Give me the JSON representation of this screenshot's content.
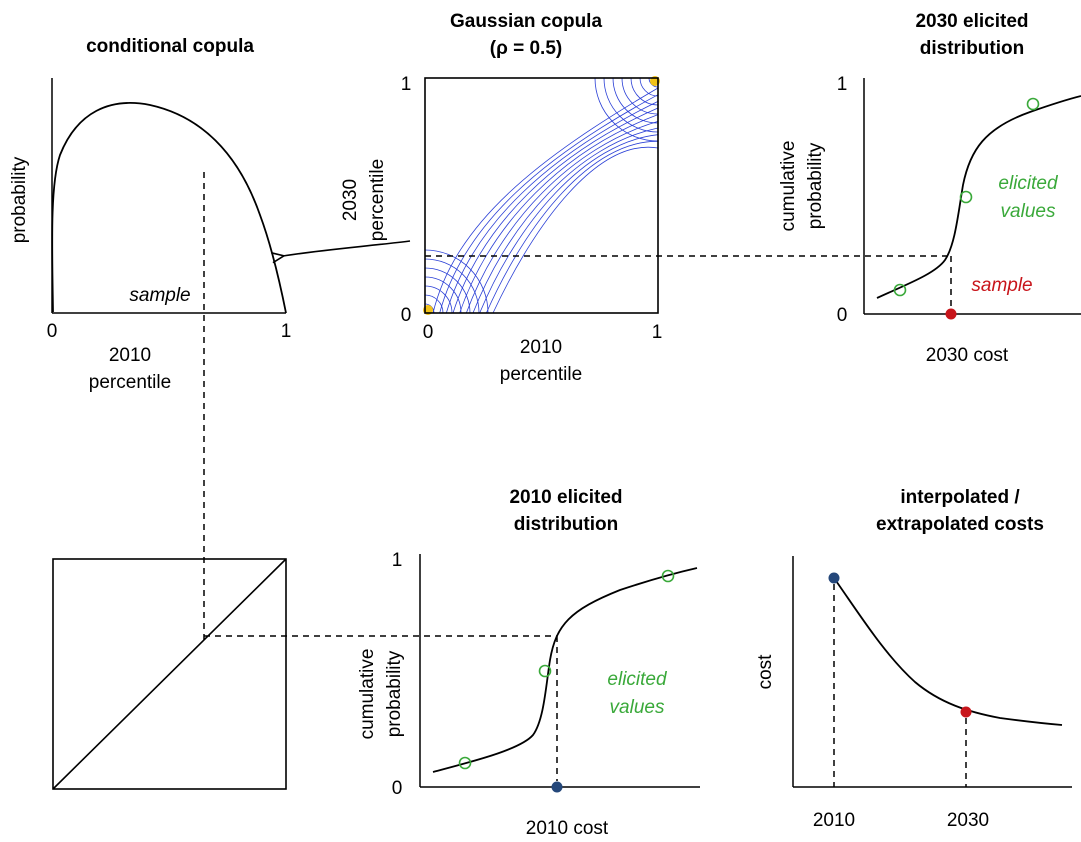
{
  "colors": {
    "elicited": "#3aa93a",
    "sample": "#c8151b",
    "point_2010": "#24477a",
    "contour": "#2a3fd6",
    "line": "#000000"
  },
  "panels": {
    "conditional": {
      "title": "conditional copula",
      "ylabel": "probability",
      "xlabel_line1": "2010",
      "xlabel_line2": "percentile",
      "x_tick_min": "0",
      "x_tick_max": "1",
      "sample_label": "sample"
    },
    "copula": {
      "title_line1": "Gaussian copula",
      "title_line2": "(ρ = 0.5)",
      "ylabel_line1": "2030",
      "ylabel_line2": "percentile",
      "xlabel_line1": "2010",
      "xlabel_line2": "percentile",
      "tick_0": "0",
      "tick_1_x": "1",
      "tick_1_y": "1",
      "rho": 0.5
    },
    "dist2030": {
      "title_line1": "2030 elicited",
      "title_line2": "distribution",
      "ylabel_line1": "cumulative",
      "ylabel_line2": "probability",
      "xlabel": "2030 cost",
      "y_tick_min": "0",
      "y_tick_max": "1",
      "elicited_line1": "elicited",
      "elicited_line2": "values",
      "sample_label": "sample"
    },
    "dist2010": {
      "title_line1": "2010 elicited",
      "title_line2": "distribution",
      "ylabel_line1": "cumulative",
      "ylabel_line2": "probability",
      "xlabel": "2010 cost",
      "y_tick_min": "0",
      "y_tick_max": "1",
      "elicited_line1": "elicited",
      "elicited_line2": "values"
    },
    "interp": {
      "title_line1": "interpolated /",
      "title_line2": "extrapolated costs",
      "ylabel": "cost",
      "x_tick_1": "2010",
      "x_tick_2": "2030"
    }
  }
}
